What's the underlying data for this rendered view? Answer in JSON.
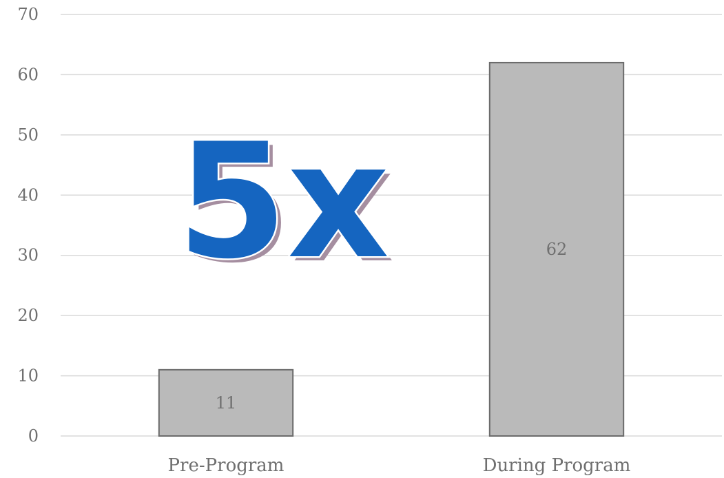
{
  "chart_data": {
    "type": "bar",
    "categories": [
      "Pre-Program",
      "During Program"
    ],
    "values": [
      11,
      62
    ],
    "data_labels": [
      "11",
      "62"
    ],
    "title": "",
    "xlabel": "",
    "ylabel": "",
    "ylim": [
      0,
      70
    ],
    "yticks": [
      0,
      10,
      20,
      30,
      40,
      50,
      60,
      70
    ],
    "ytick_labels": [
      "0",
      "10",
      "20",
      "30",
      "40",
      "50",
      "60",
      "70"
    ],
    "grid": true,
    "legend": "none",
    "bar_color": "#bababa",
    "bar_edge_color": "#6b6b6b",
    "annotation": {
      "text": "5x",
      "color": "#1565c0",
      "outline_color": "#ffffff",
      "shadow_color": "#a58ea0"
    }
  }
}
